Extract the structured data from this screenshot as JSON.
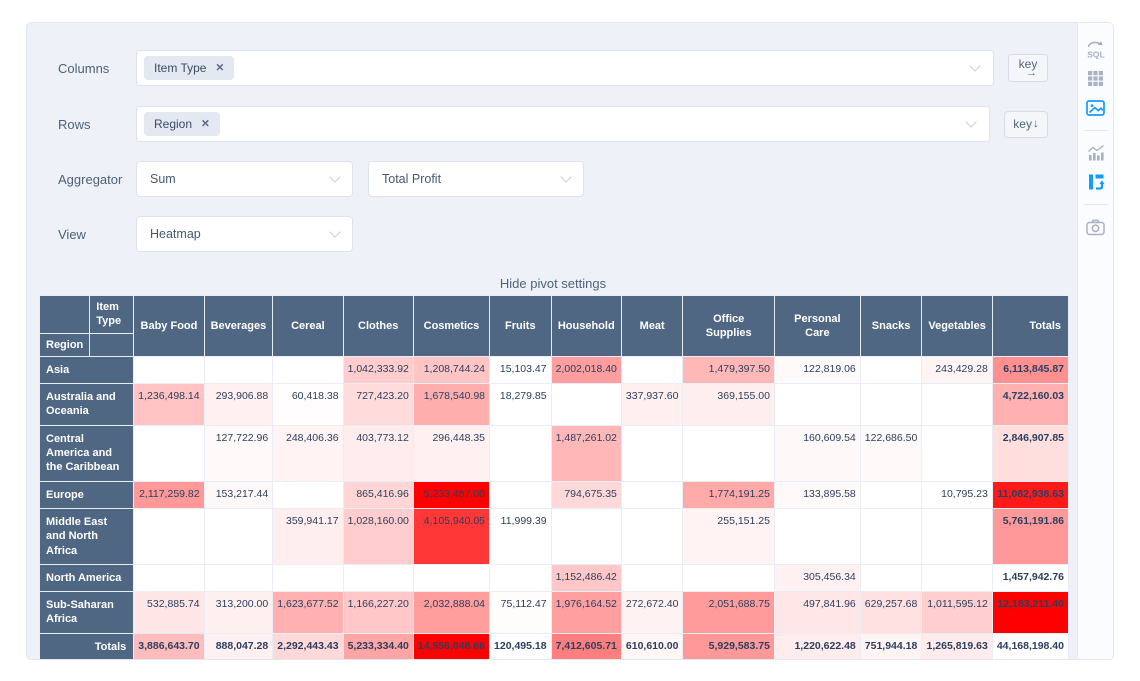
{
  "controls": {
    "columns": {
      "label": "Columns",
      "tags": [
        "Item Type"
      ],
      "remove_icon": "✕",
      "key_label": "key",
      "key_arrow": "→"
    },
    "rows": {
      "label": "Rows",
      "tags": [
        "Region"
      ],
      "remove_icon": "✕",
      "key_label": "key",
      "key_arrow": "↓"
    },
    "aggregator": {
      "label": "Aggregator",
      "value": "Sum",
      "arg_value": "Total Profit"
    },
    "view": {
      "label": "View",
      "value": "Heatmap"
    },
    "hide_settings_label": "Hide pivot settings"
  },
  "sidebar": {
    "sql_icon_text": "SQL",
    "active_color": "#119dff",
    "inactive_color": "#a9b2c4",
    "items": [
      {
        "name": "sql",
        "active": false
      },
      {
        "name": "table",
        "active": false
      },
      {
        "name": "image-preview",
        "active": true
      },
      {
        "name": "chart",
        "active": false
      },
      {
        "name": "pivot",
        "active": true
      },
      {
        "name": "camera-export",
        "active": false
      }
    ]
  },
  "pivot": {
    "col_attr": "Item Type",
    "row_attr": "Region",
    "totals_label": "Totals",
    "col_labels": [
      "Baby Food",
      "Beverages",
      "Cereal",
      "Clothes",
      "Cosmetics",
      "Fruits",
      "Household",
      "Meat",
      "Office Supplies",
      "Personal Care",
      "Snacks",
      "Vegetables"
    ],
    "rows": [
      {
        "label": "Asia",
        "values": [
          null,
          null,
          null,
          1042333.92,
          1208744.24,
          15103.47,
          2002018.4,
          null,
          1479397.5,
          122819.06,
          null,
          243429.28
        ],
        "total": 6113845.87
      },
      {
        "label": "Australia and Oceania",
        "values": [
          1236498.14,
          293906.88,
          60418.38,
          727423.2,
          1678540.98,
          18279.85,
          null,
          337937.6,
          369155.0,
          null,
          null,
          null
        ],
        "total": 4722160.03
      },
      {
        "label": "Central America and the Caribbean",
        "values": [
          null,
          127722.96,
          248406.36,
          403773.12,
          296448.35,
          null,
          1487261.02,
          null,
          null,
          160609.54,
          122686.5,
          null
        ],
        "total": 2846907.85
      },
      {
        "label": "Europe",
        "values": [
          2117259.82,
          153217.44,
          null,
          865416.96,
          5233487.0,
          null,
          794675.35,
          null,
          1774191.25,
          133895.58,
          null,
          10795.23
        ],
        "total": 11082938.63
      },
      {
        "label": "Middle East and North Africa",
        "values": [
          null,
          null,
          359941.17,
          1028160.0,
          4105940.05,
          11999.39,
          null,
          null,
          255151.25,
          null,
          null,
          null
        ],
        "total": 5761191.86
      },
      {
        "label": "North America",
        "values": [
          null,
          null,
          null,
          null,
          null,
          null,
          1152486.42,
          null,
          null,
          305456.34,
          null,
          null
        ],
        "total": 1457942.76
      },
      {
        "label": "Sub-Saharan Africa",
        "values": [
          532885.74,
          313200.0,
          1623677.52,
          1166227.2,
          2032888.04,
          75112.47,
          1976164.52,
          272672.4,
          2051688.75,
          497841.96,
          629257.68,
          1011595.12
        ],
        "total": 12183211.4
      }
    ],
    "col_totals": [
      3886643.7,
      888047.28,
      2292443.43,
      5233334.4,
      14556048.66,
      120495.18,
      7412605.71,
      610610.0,
      5929583.75,
      1220622.48,
      751944.18,
      1265819.63
    ],
    "grand_total": 44168198.4,
    "heatmap": {
      "min_color": "#ffffff",
      "max_color": "#ff0000",
      "header_bg": "#506784",
      "cell_text": "#2a3f5f"
    }
  }
}
